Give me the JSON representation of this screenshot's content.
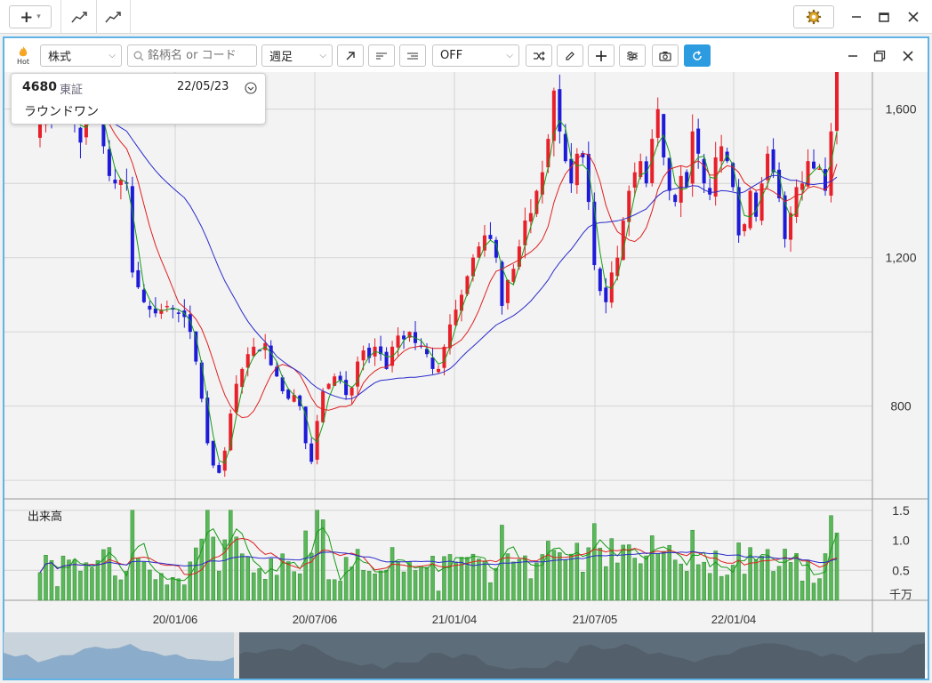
{
  "toolbar": {
    "add_label": "+",
    "add_chevron": "▾"
  },
  "chart_window": {
    "hot_label": "Hot",
    "market_select": "株式",
    "search_placeholder": "銘柄名 or コード",
    "period_select": "週足",
    "indicator_select": "OFF"
  },
  "info": {
    "code": "4680",
    "exchange": "東証",
    "date": "22/05/23",
    "name": "ラウンドワン"
  },
  "chart_data": {
    "type": "candlestick",
    "price_axis": {
      "ticks": [
        800,
        1200,
        1600
      ],
      "labels": [
        "800",
        "1,200",
        "1,600"
      ],
      "range": [
        550,
        1700
      ]
    },
    "volume_axis": {
      "title": "出来高",
      "ticks": [
        0.5,
        1.0,
        1.5
      ],
      "labels": [
        "0.5",
        "1.0",
        "1.5"
      ],
      "unit": "千万",
      "range": [
        0,
        1.6
      ]
    },
    "date_axis": {
      "labels": [
        "20/01/06",
        "20/07/06",
        "21/01/04",
        "21/07/05",
        "22/01/04"
      ]
    },
    "series_colors": {
      "up": "#e8202a",
      "down": "#1d1ad8",
      "ma_short": "#169c16",
      "ma_mid": "#e02020",
      "ma_long": "#2a2acc",
      "volume": "#5ab85a"
    },
    "close": [
      1570,
      1640,
      1590,
      1600,
      1650,
      1600,
      1560,
      1510,
      1580,
      1630,
      1590,
      1500,
      1420,
      1400,
      1410,
      1400,
      1160,
      1120,
      1080,
      1060,
      1050,
      1060,
      1070,
      1060,
      1050,
      1040,
      1000,
      920,
      820,
      700,
      640,
      620,
      680,
      780,
      860,
      900,
      940,
      960,
      950,
      970,
      910,
      880,
      840,
      820,
      830,
      800,
      700,
      650,
      760,
      840,
      860,
      880,
      870,
      830,
      850,
      920,
      950,
      930,
      960,
      940,
      900,
      960,
      990,
      980,
      1000,
      970,
      960,
      940,
      900,
      900,
      960,
      1020,
      1060,
      1100,
      1150,
      1200,
      1230,
      1260,
      1250,
      1200,
      1070,
      1140,
      1170,
      1230,
      1300,
      1320,
      1380,
      1430,
      1520,
      1650,
      1540,
      1460,
      1400,
      1480,
      1470,
      1350,
      1180,
      1110,
      1080,
      1160,
      1200,
      1300,
      1380,
      1430,
      1460,
      1400,
      1520,
      1600,
      1470,
      1380,
      1350,
      1420,
      1390,
      1540,
      1480,
      1400,
      1370,
      1470,
      1500,
      1460,
      1390,
      1260,
      1290,
      1380,
      1310,
      1400,
      1480,
      1430,
      1360,
      1250,
      1320,
      1390,
      1400,
      1460,
      1440,
      1440,
      1380,
      1540,
      1700
    ]
  }
}
